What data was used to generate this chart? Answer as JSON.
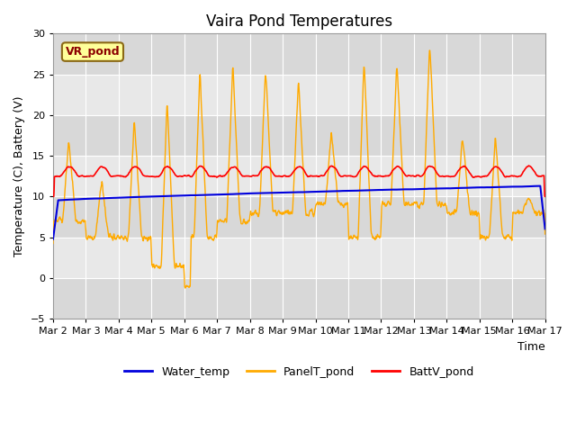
{
  "title": "Vaira Pond Temperatures",
  "xlabel": "Time",
  "ylabel": "Temperature (C), Battery (V)",
  "ylim": [
    -5,
    30
  ],
  "yticks": [
    -5,
    0,
    5,
    10,
    15,
    20,
    25,
    30
  ],
  "annotation_text": "VR_pond",
  "water_temp_color": "#0000dd",
  "panel_temp_color": "#ffaa00",
  "batt_color": "#ff0000",
  "legend_labels": [
    "Water_temp",
    "PanelT_pond",
    "BattV_pond"
  ],
  "x_tick_labels": [
    "Mar 2",
    "Mar 3",
    "Mar 4",
    "Mar 5",
    "Mar 6",
    "Mar 7",
    "Mar 8",
    "Mar 9",
    "Mar 10",
    "Mar 11",
    "Mar 12",
    "Mar 13",
    "Mar 14",
    "Mar 15",
    "Mar 16",
    "Mar 17"
  ],
  "num_days": 15,
  "points_per_day": 96,
  "fig_bg": "#ffffff",
  "plot_bg": "#e8e8e8",
  "grid_color": "#ffffff",
  "title_fontsize": 12,
  "axis_fontsize": 9,
  "tick_fontsize": 8
}
